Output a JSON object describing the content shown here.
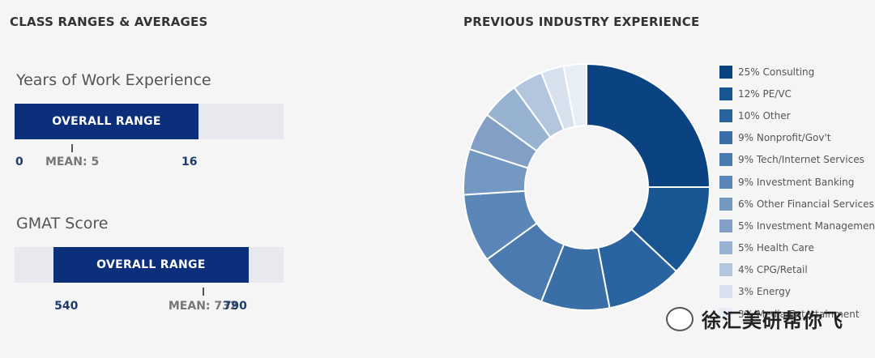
{
  "left_section": {
    "title": "CLASS RANGES & AVERAGES",
    "work": {
      "title": "Years of Work Experience",
      "bar_label": "OVERALL RANGE",
      "min": "0",
      "max": "16",
      "mean_label": "MEAN: 5",
      "min_value": 0,
      "max_value": 16,
      "mean_value": 5,
      "axis_start": 0,
      "axis_end": 23.4
    },
    "gmat": {
      "title": "GMAT Score",
      "bar_label": "OVERALL RANGE",
      "min": "540",
      "max": "790",
      "mean_label": "MEAN: 732",
      "min_value": 540,
      "max_value": 790,
      "mean_value": 732,
      "axis_start": 490,
      "axis_end": 835
    }
  },
  "right_section": {
    "title": "PREVIOUS INDUSTRY EXPERIENCE"
  },
  "chart_data": {
    "type": "pie",
    "title": "PREVIOUS INDUSTRY EXPERIENCE",
    "donut": true,
    "legend_position": "right",
    "labels": [
      "Consulting",
      "PE/VC",
      "Other",
      "Nonprofit/Gov't",
      "Tech/Internet Services",
      "Investment Banking",
      "Other Financial Services",
      "Investment Management",
      "Health Care",
      "CPG/Retail",
      "Energy",
      "Media/Entertainment"
    ],
    "values": [
      25,
      12,
      10,
      9,
      9,
      9,
      6,
      5,
      5,
      4,
      3,
      3
    ],
    "legend_labels": [
      "25% Consulting",
      "12% PE/VC",
      "10% Other",
      "9% Nonprofit/Gov't",
      "9% Tech/Internet Services",
      "9% Investment Banking",
      "6% Other Financial Services",
      "5% Investment Management",
      "5% Health Care",
      "4% CPG/Retail",
      "3% Energy",
      "3% Media/Entertainment"
    ],
    "colors": [
      "#0b4382",
      "#185693",
      "#2a64a0",
      "#3a6ea6",
      "#4a7aaf",
      "#5b86b8",
      "#7398c2",
      "#839fc5",
      "#98b2d1",
      "#b3c6dd",
      "#d6e1ed",
      "#e8eef5"
    ]
  },
  "watermark": {
    "text": "徐汇美研帮你飞"
  }
}
